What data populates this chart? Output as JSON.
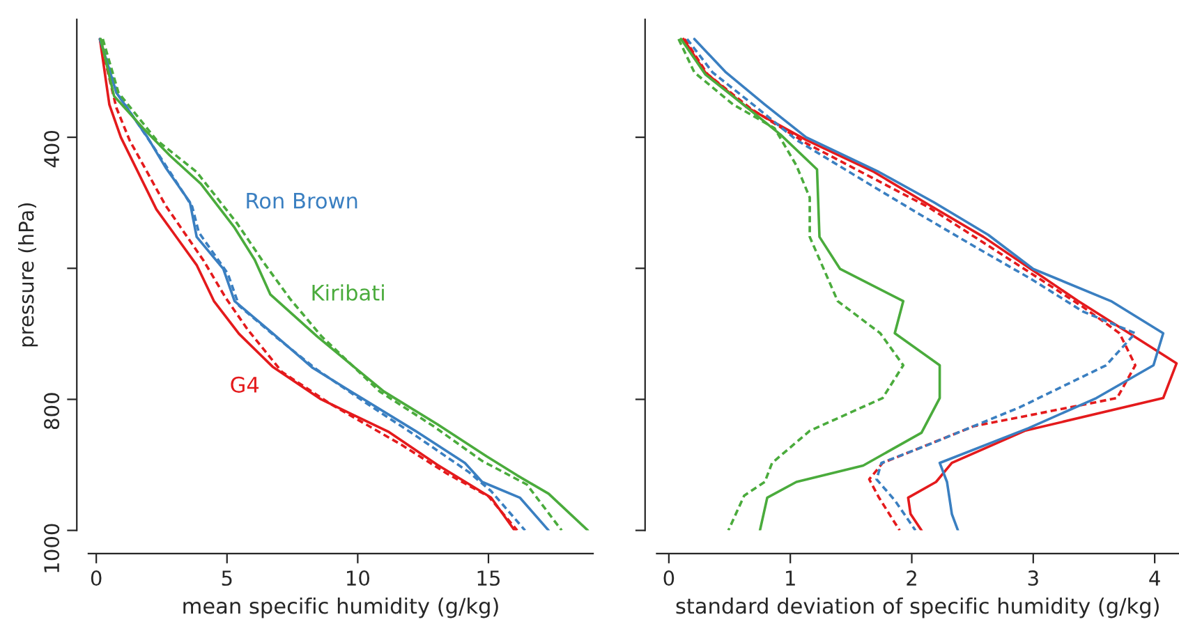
{
  "chart_data": [
    {
      "type": "line",
      "xlabel": "mean specific humidity (g/kg)",
      "ylabel": "pressure (hPa)",
      "xlim": [
        -0.3,
        19.0
      ],
      "ylim": [
        1000,
        220
      ],
      "xticks": [
        0,
        5,
        10,
        15
      ],
      "yticks": [
        400,
        {
          "value": 600,
          "label": null
        },
        800,
        1000
      ],
      "series": [
        {
          "name": "G4",
          "color": "#e41a1c",
          "line_style": "solid",
          "x": [
            0.14,
            0.5,
            0.94,
            2.3,
            3.84,
            4.5,
            5.46,
            6.74,
            8.6,
            11.2,
            13.05,
            15.1,
            16.0
          ],
          "values": [
            250,
            350,
            400,
            510,
            595,
            650,
            700,
            750,
            800,
            850,
            900,
            950,
            1000
          ]
        },
        {
          "color": "#e41a1c",
          "line_style": "dashed",
          "x": [
            0.14,
            0.77,
            1.28,
            2.65,
            4.1,
            4.95,
            5.8,
            7.1,
            8.96,
            11.7,
            13.4,
            15.0,
            16.1
          ],
          "values": [
            250,
            355,
            405,
            504,
            588,
            645,
            694,
            758,
            807,
            870,
            913,
            948,
            1000
          ]
        },
        {
          "name": "Ron Brown",
          "color": "#3a7fc1",
          "line_style": "solid",
          "x": [
            0.14,
            0.77,
            1.96,
            2.65,
            3.58,
            3.84,
            4.86,
            5.29,
            6.74,
            8.28,
            10.15,
            12.2,
            14.1,
            14.76,
            16.2,
            17.3
          ],
          "values": [
            250,
            332,
            400,
            446,
            499,
            552,
            601,
            650,
            699,
            752,
            798,
            848,
            897,
            926,
            950,
            1000
          ]
        },
        {
          "color": "#3a7fc1",
          "line_style": "dashed",
          "x": [
            0.14,
            0.85,
            2.13,
            2.82,
            3.67,
            3.92,
            5.03,
            5.46,
            6.91,
            8.45,
            10.3,
            12.2,
            14.25,
            15.1,
            16.4
          ],
          "values": [
            250,
            335,
            411,
            453,
            506,
            545,
            608,
            657,
            706,
            755,
            805,
            855,
            911,
            940,
            1000
          ]
        },
        {
          "name": "Kiribati",
          "color": "#4aab3c",
          "line_style": "solid",
          "x": [
            0.17,
            0.68,
            1.79,
            2.82,
            4.0,
            5.29,
            6.06,
            6.66,
            8.45,
            11.0,
            13.05,
            14.93,
            16.1,
            17.3,
            18.8
          ],
          "values": [
            250,
            337,
            386,
            428,
            471,
            538,
            587,
            640,
            704,
            788,
            838,
            887,
            916,
            944,
            1000
          ]
        },
        {
          "color": "#4aab3c",
          "line_style": "dashed",
          "x": [
            0.25,
            0.85,
            2.3,
            3.84,
            5.38,
            6.4,
            7.42,
            8.62,
            10.84,
            12.9,
            14.76,
            16.47,
            17.8
          ],
          "values": [
            250,
            332,
            404,
            453,
            531,
            591,
            647,
            704,
            788,
            841,
            894,
            930,
            1000
          ]
        }
      ]
    },
    {
      "type": "line",
      "xlabel": "standard deviation of specific humidity (g/kg)",
      "xlim": [
        -0.1,
        4.2
      ],
      "ylim": [
        1000,
        220
      ],
      "xticks": [
        0,
        1,
        2,
        3,
        4
      ],
      "yticks": [
        400,
        {
          "value": 600,
          "label": null
        },
        800,
        1000
      ],
      "tick_labels": "x",
      "series": [
        {
          "color": "#e41a1c",
          "line_style": "solid",
          "x": [
            0.12,
            0.3,
            0.64,
            1.13,
            1.69,
            2.14,
            2.59,
            2.98,
            3.37,
            3.79,
            4.18,
            4.07,
            2.93,
            2.33,
            2.2,
            1.97,
            1.99,
            2.08
          ],
          "values": [
            250,
            301,
            354,
            404,
            453,
            503,
            552,
            601,
            650,
            699,
            745,
            798,
            848,
            897,
            926,
            950,
            975,
            1000
          ]
        },
        {
          "color": "#e41a1c",
          "line_style": "dashed",
          "x": [
            0.13,
            0.32,
            0.68,
            1.13,
            2.14,
            2.96,
            3.41,
            3.71,
            3.84,
            3.69,
            2.51,
            1.76,
            1.65,
            1.73,
            1.9
          ],
          "values": [
            250,
            304,
            357,
            409,
            507,
            605,
            659,
            699,
            748,
            798,
            841,
            897,
            922,
            950,
            1000
          ]
        },
        {
          "color": "#3a7fc1",
          "line_style": "solid",
          "x": [
            0.21,
            0.47,
            0.79,
            1.13,
            1.73,
            2.18,
            2.63,
            3.0,
            3.64,
            4.07,
            3.99,
            3.52,
            2.96,
            2.23,
            2.29,
            2.33,
            2.38
          ],
          "values": [
            250,
            301,
            350,
            400,
            453,
            499,
            549,
            601,
            650,
            699,
            748,
            798,
            844,
            897,
            926,
            975,
            1000
          ]
        },
        {
          "color": "#3a7fc1",
          "line_style": "dashed",
          "x": [
            0.15,
            0.36,
            0.72,
            1.05,
            1.61,
            2.06,
            2.51,
            2.98,
            3.41,
            3.84,
            3.6,
            2.89,
            2.14,
            1.75,
            1.71,
            1.86,
            2.03
          ],
          "values": [
            250,
            301,
            354,
            404,
            467,
            517,
            566,
            616,
            666,
            699,
            748,
            812,
            869,
            897,
            922,
            954,
            1000
          ]
        },
        {
          "color": "#4aab3c",
          "line_style": "solid",
          "x": [
            0.1,
            0.3,
            0.64,
            0.92,
            1.22,
            1.24,
            1.41,
            1.93,
            1.86,
            2.23,
            2.23,
            2.08,
            1.6,
            1.05,
            0.81,
            0.75
          ],
          "values": [
            250,
            304,
            354,
            396,
            449,
            552,
            601,
            650,
            699,
            748,
            798,
            851,
            901,
            926,
            950,
            1000
          ]
        },
        {
          "color": "#4aab3c",
          "line_style": "dashed",
          "x": [
            0.08,
            0.21,
            0.53,
            0.87,
            1.05,
            1.16,
            1.16,
            1.39,
            1.74,
            1.93,
            1.76,
            1.16,
            0.85,
            0.79,
            0.62,
            0.49
          ],
          "values": [
            250,
            301,
            350,
            386,
            443,
            492,
            552,
            650,
            699,
            748,
            798,
            848,
            897,
            926,
            947,
            1000
          ]
        }
      ]
    }
  ]
}
